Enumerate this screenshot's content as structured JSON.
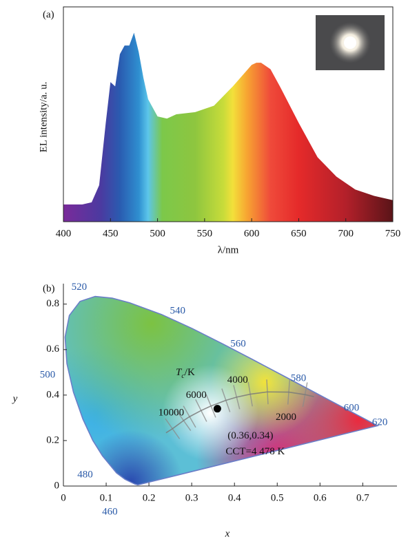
{
  "chart_data": [
    {
      "type": "area",
      "panel_label": "(a)",
      "x": [
        400,
        420,
        430,
        438,
        445,
        450,
        455,
        460,
        465,
        470,
        475,
        480,
        485,
        490,
        500,
        510,
        520,
        540,
        560,
        580,
        600,
        605,
        610,
        620,
        630,
        650,
        670,
        690,
        710,
        730,
        750
      ],
      "values": [
        0.08,
        0.08,
        0.09,
        0.17,
        0.46,
        0.65,
        0.63,
        0.78,
        0.82,
        0.82,
        0.88,
        0.79,
        0.67,
        0.57,
        0.49,
        0.48,
        0.5,
        0.51,
        0.54,
        0.63,
        0.73,
        0.74,
        0.74,
        0.71,
        0.63,
        0.46,
        0.3,
        0.21,
        0.15,
        0.12,
        0.1
      ],
      "xlim": [
        400,
        750
      ],
      "ylim": [
        0,
        1
      ],
      "xticks": [
        400,
        450,
        500,
        550,
        600,
        650,
        700,
        750
      ],
      "x_label": "λ/nm",
      "y_label": "EL intensity/a. u."
    },
    {
      "type": "chromaticity",
      "panel_label": "(b)",
      "xlim": [
        0,
        0.78
      ],
      "ylim": [
        0,
        0.89
      ],
      "xticks": [
        0,
        0.1,
        0.2,
        0.3,
        0.4,
        0.5,
        0.6,
        0.7
      ],
      "yticks": [
        0,
        0.2,
        0.4,
        0.6,
        0.8
      ],
      "x_label": "x",
      "y_label": "y",
      "locus": {
        "x": [
          0.1741,
          0.1666,
          0.144,
          0.1241,
          0.0913,
          0.0687,
          0.0454,
          0.0235,
          0.0082,
          0.0039,
          0.0139,
          0.0389,
          0.0743,
          0.1142,
          0.1547,
          0.2296,
          0.3016,
          0.3731,
          0.4441,
          0.5125,
          0.5752,
          0.627,
          0.6658,
          0.6915,
          0.7347
        ],
        "y": [
          0.005,
          0.0089,
          0.0297,
          0.0578,
          0.1327,
          0.2007,
          0.295,
          0.4127,
          0.5384,
          0.6548,
          0.7502,
          0.812,
          0.8338,
          0.8262,
          0.8059,
          0.7543,
          0.6923,
          0.6245,
          0.5547,
          0.4866,
          0.4242,
          0.3725,
          0.334,
          0.3083,
          0.2653
        ]
      },
      "wavelength_labels": {
        "labels": [
          "460",
          "480",
          "500",
          "520",
          "540",
          "560",
          "580",
          "600",
          "620"
        ],
        "x": [
          0.144,
          0.091,
          0.008,
          0.074,
          0.23,
          0.373,
          0.5125,
          0.627,
          0.6915
        ],
        "y": [
          0.03,
          0.133,
          0.538,
          0.834,
          0.754,
          0.624,
          0.4866,
          0.3725,
          0.3083
        ]
      },
      "planckian": {
        "x": [
          0.24,
          0.255,
          0.281,
          0.295,
          0.322,
          0.345,
          0.38,
          0.405,
          0.437,
          0.477,
          0.527,
          0.565,
          0.586
        ],
        "y": [
          0.234,
          0.252,
          0.288,
          0.305,
          0.332,
          0.352,
          0.377,
          0.391,
          0.404,
          0.414,
          0.413,
          0.402,
          0.393
        ]
      },
      "temperature_labels": {
        "labels": [
          "10000",
          "6000",
          "4000",
          "2000"
        ],
        "x": [
          0.281,
          0.322,
          0.38,
          0.527
        ],
        "y": [
          0.288,
          0.332,
          0.377,
          0.413
        ]
      },
      "temperature_axis_label": {
        "symbol": "T",
        "subscript": "c",
        "unit": "/K"
      },
      "point": {
        "x": 0.36,
        "y": 0.34,
        "label": "(0.36,0.34)",
        "cct_label": "CCT=4 478 K",
        "color": "#000000"
      }
    }
  ]
}
